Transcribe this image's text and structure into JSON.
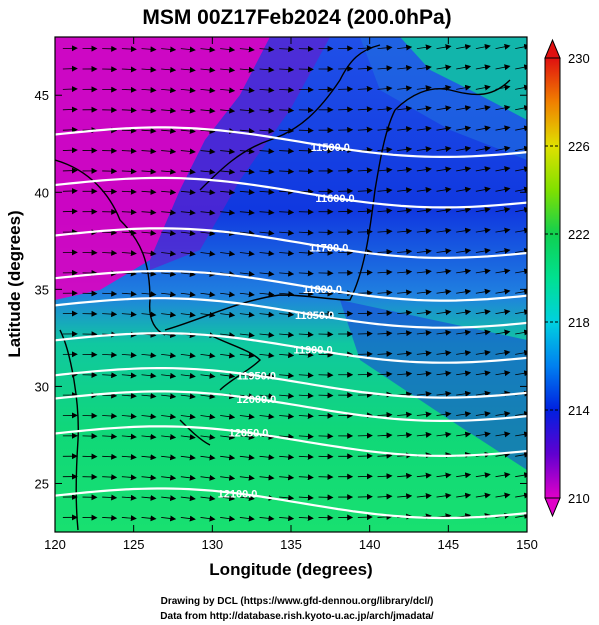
{
  "title": "MSM 00Z17Feb2024 (200.0hPa)",
  "xlabel": "Longitude (degrees)",
  "ylabel": "Latitude  (degrees)",
  "credits": [
    "Drawing by DCL (https://www.gfd-dennou.org/library/dcl/)",
    "Data from http://database.rish.kyoto-u.ac.jp/arch/jmadata/"
  ],
  "map": {
    "lon_range": [
      120,
      150
    ],
    "lat_range": [
      22.5,
      48
    ],
    "x_ticks": [
      120,
      125,
      130,
      135,
      140,
      145,
      150
    ],
    "y_ticks": [
      25,
      30,
      35,
      40,
      45
    ],
    "colors": {
      "high_temp": "#00d080",
      "mid_temp": "#1040e0",
      "low_temp": "#e000c0",
      "contour": "#ffffff",
      "vector": "#000000"
    }
  },
  "colorbar": {
    "range": [
      210,
      230
    ],
    "ticks": [
      210,
      214,
      218,
      222,
      226,
      230
    ],
    "colors": [
      "#d000c8",
      "#2000d0",
      "#0030f0",
      "#00a0f0",
      "#00e0d0",
      "#00d080",
      "#40d840",
      "#c0e000",
      "#f0d000",
      "#f07000",
      "#e01000"
    ]
  },
  "contours": [
    {
      "label": "11500.0",
      "lat": 42.6,
      "label_lon": 137.5
    },
    {
      "label": "11600.0",
      "lat": 40.0,
      "label_lon": 137.8
    },
    {
      "label": "11700.0",
      "lat": 37.4,
      "label_lon": 137.4
    },
    {
      "label": "11800.0",
      "lat": 35.2,
      "label_lon": 137.0
    },
    {
      "label": "11850.0",
      "lat": 33.8,
      "label_lon": 136.5
    },
    {
      "label": "11900.0",
      "lat": 32.0,
      "label_lon": 136.4
    },
    {
      "label": "11950.0",
      "lat": 30.2,
      "label_lon": 132.8
    },
    {
      "label": "12000.0",
      "lat": 29.0,
      "label_lon": 132.8
    },
    {
      "label": "12050.0",
      "lat": 27.2,
      "label_lon": 132.3
    },
    {
      "label": "12100.0",
      "lat": 24.0,
      "label_lon": 131.6
    }
  ]
}
